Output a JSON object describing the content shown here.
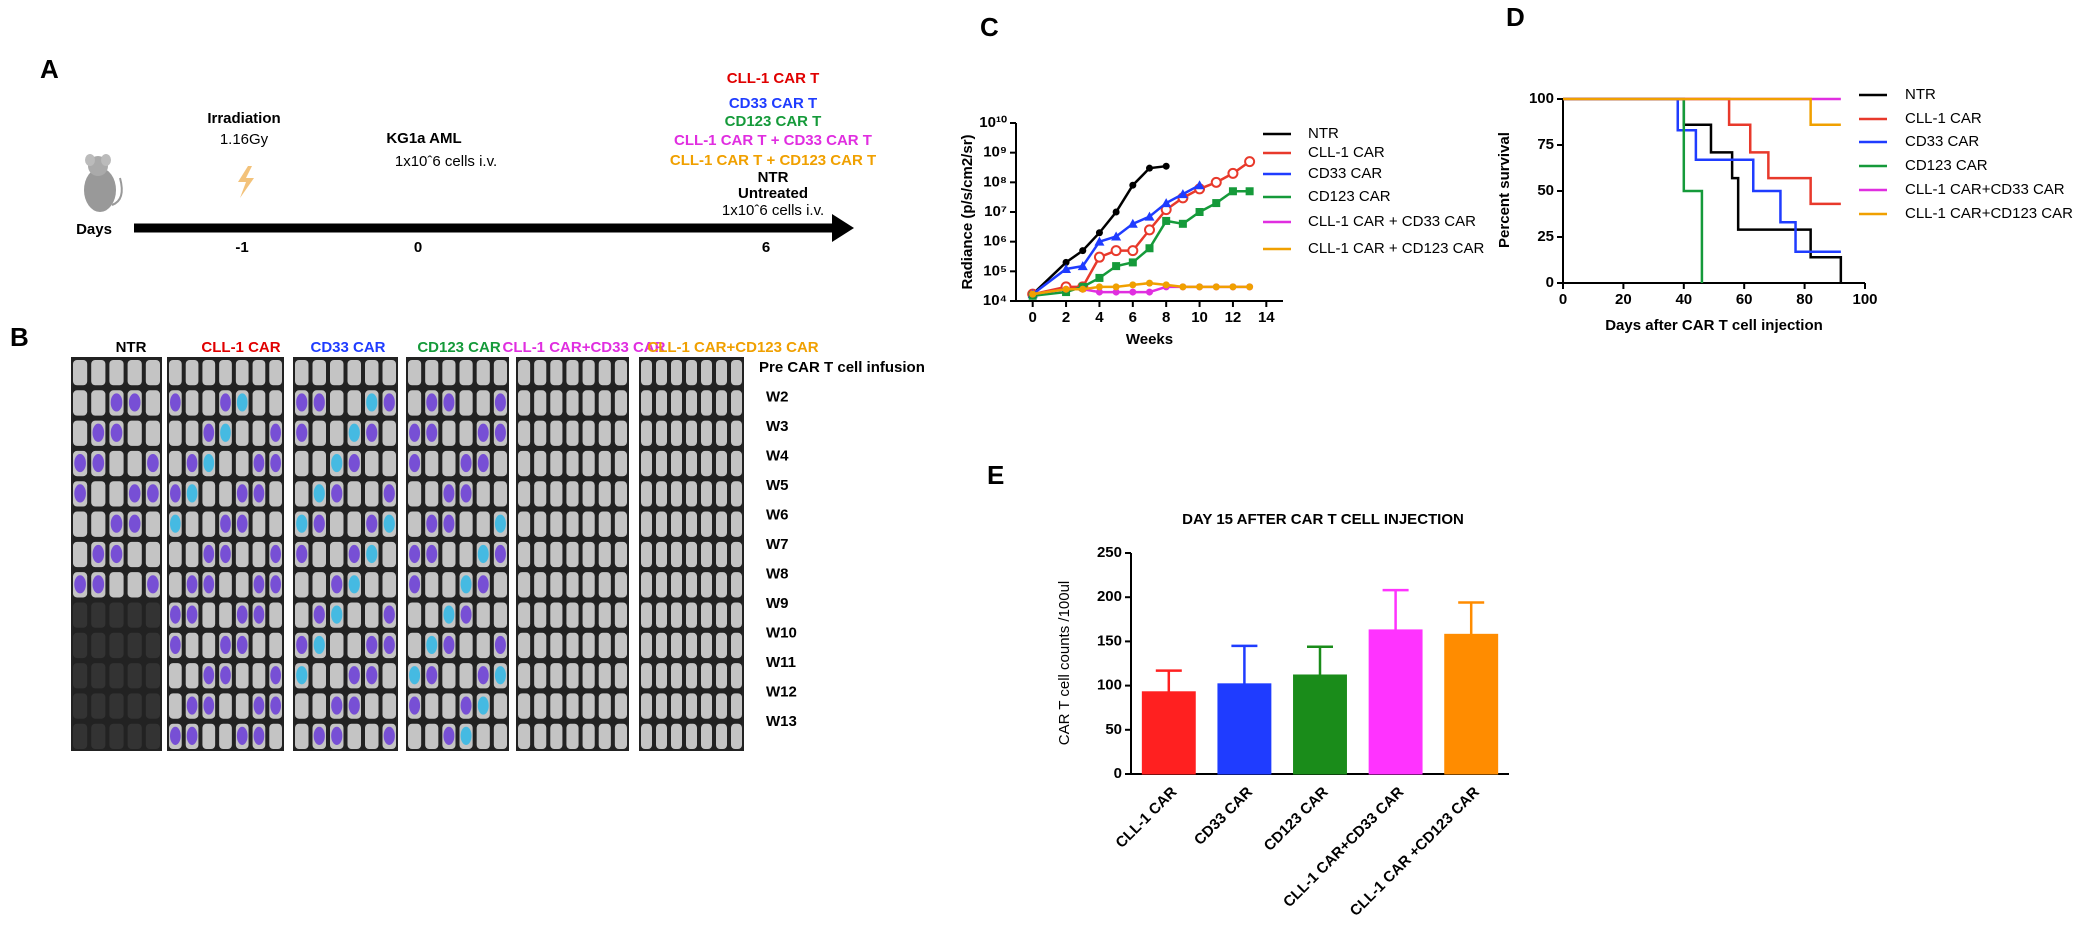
{
  "panel_a": {
    "label": "A",
    "irradiation": {
      "title": "Irradiation",
      "dose": "1.16Gy"
    },
    "injection": {
      "title": "KG1a AML",
      "detail": "1x10ˆ6 cells i.v."
    },
    "axis_label": "Days",
    "days": [
      "-1",
      "0",
      "6"
    ],
    "treatments": [
      {
        "text": "CLL-1 CAR T",
        "color": "#e00000"
      },
      {
        "text": "CD33 CAR  T",
        "color": "#1f3cff"
      },
      {
        "text": "CD123 CAR T",
        "color": "#159a3a"
      },
      {
        "text": "CLL-1 CAR T + CD33 CAR T",
        "color": "#e02ee0"
      },
      {
        "text": "CLL-1 CAR T + CD123 CAR T",
        "color": "#f0a000"
      }
    ],
    "controls": [
      "NTR",
      "Untreated",
      "1x10ˆ6 cells i.v."
    ]
  },
  "panel_b": {
    "label": "B",
    "groups": [
      {
        "name": "NTR",
        "color": "#000000"
      },
      {
        "name": "CLL-1 CAR",
        "color": "#e00000"
      },
      {
        "name": "CD33 CAR",
        "color": "#1f3cff"
      },
      {
        "name": "CD123 CAR",
        "color": "#159a3a"
      },
      {
        "name": "CLL-1 CAR+CD33 CAR",
        "color": "#e02ee0"
      },
      {
        "name": "CLL-1 CAR+CD123 CAR",
        "color": "#f0a000"
      }
    ],
    "rows": [
      "Pre CAR T cell infusion",
      "W2",
      "W3",
      "W4",
      "W5",
      "W6",
      "W7",
      "W8",
      "W9",
      "W10",
      "W11",
      "W12",
      "W13"
    ]
  },
  "chart_data": [
    {
      "type": "line",
      "label": "C",
      "ylabel": "Radiance (p/s/cm2/sr)",
      "xlabel": "Weeks",
      "log_y": true,
      "x": [
        0,
        2,
        3,
        4,
        5,
        6,
        7,
        8,
        9,
        10,
        11,
        12,
        13
      ],
      "xlim": [
        -1,
        15
      ],
      "xticks": [
        0,
        2,
        4,
        6,
        8,
        10,
        12,
        14
      ],
      "ylim": [
        10000,
        10000000000
      ],
      "yticks": [
        {
          "value": 10000,
          "label": "10⁴"
        },
        {
          "value": 100000,
          "label": "10⁵"
        },
        {
          "value": 1000000,
          "label": "10⁶"
        },
        {
          "value": 10000000,
          "label": "10⁷"
        },
        {
          "value": 100000000,
          "label": "10⁸"
        },
        {
          "value": 1000000000,
          "label": "10⁹"
        },
        {
          "value": 10000000000,
          "label": "10¹⁰"
        }
      ],
      "series": [
        {
          "name": "NTR",
          "color": "#000000",
          "values": [
            17000,
            200000,
            500000,
            2000000,
            10000000,
            80000000,
            300000000,
            350000000,
            null,
            null,
            null,
            null,
            null
          ]
        },
        {
          "name": "CLL-1 CAR",
          "color": "#e8392b",
          "values": [
            17000,
            30000,
            30000,
            300000,
            500000,
            500000,
            2500000,
            12000000,
            30000000,
            60000000,
            100000000,
            200000000,
            500000000
          ]
        },
        {
          "name": "CD33 CAR",
          "color": "#1f3cff",
          "values": [
            17000,
            120000,
            150000,
            1000000,
            1500000,
            4000000,
            7000000,
            20000000,
            40000000,
            80000000,
            null,
            null,
            null
          ]
        },
        {
          "name": "CD123 CAR",
          "color": "#159a3a",
          "values": [
            15000,
            20000,
            30000,
            60000,
            150000,
            200000,
            600000,
            5000000,
            4000000,
            10000000,
            20000000,
            50000000,
            50000000
          ]
        },
        {
          "name": "CLL-1 CAR + CD33 CAR",
          "color": "#e02ee0",
          "values": [
            17000,
            25000,
            25000,
            20000,
            20000,
            20000,
            20000,
            30000,
            30000,
            30000,
            30000,
            30000,
            30000
          ]
        },
        {
          "name": "CLL-1 CAR + CD123 CAR",
          "color": "#f0a000",
          "values": [
            17000,
            25000,
            25000,
            30000,
            30000,
            35000,
            40000,
            35000,
            30000,
            30000,
            30000,
            30000,
            30000
          ]
        }
      ]
    },
    {
      "type": "step",
      "label": "D",
      "ylabel": "Percent survival",
      "xlabel": "Days after CAR T cell  injection",
      "xlim": [
        0,
        100
      ],
      "xticks": [
        0,
        20,
        40,
        60,
        80,
        100
      ],
      "ylim": [
        0,
        100
      ],
      "yticks": [
        0,
        25,
        50,
        75,
        100
      ],
      "series": [
        {
          "name": "NTR",
          "color": "#000000",
          "x": [
            0,
            40,
            49,
            56,
            58,
            82,
            92
          ],
          "values": [
            100,
            86,
            71,
            57,
            29,
            14,
            0
          ]
        },
        {
          "name": "CLL-1 CAR",
          "color": "#e8392b",
          "x": [
            0,
            55,
            62,
            68,
            82,
            92
          ],
          "values": [
            100,
            86,
            71,
            57,
            43,
            43
          ]
        },
        {
          "name": "CD33 CAR",
          "color": "#1f3cff",
          "x": [
            0,
            38,
            44,
            63,
            72,
            77,
            92
          ],
          "values": [
            100,
            83,
            67,
            50,
            33,
            17,
            17
          ]
        },
        {
          "name": "CD123 CAR",
          "color": "#159a3a",
          "x": [
            0,
            40,
            46
          ],
          "values": [
            100,
            50,
            0
          ]
        },
        {
          "name": "CLL-1 CAR+CD33 CAR",
          "color": "#e02ee0",
          "x": [
            0,
            92
          ],
          "values": [
            100,
            100
          ]
        },
        {
          "name": "CLL-1 CAR+CD123 CAR",
          "color": "#f0a000",
          "x": [
            0,
            82,
            92
          ],
          "values": [
            100,
            86,
            86
          ]
        }
      ]
    },
    {
      "type": "bar",
      "label": "E",
      "title": "DAY 15 AFTER CAR T CELL INJECTION",
      "ylabel": "CAR T cell counts /100ul",
      "categories": [
        "CLL-1 CAR",
        "CD33 CAR",
        "CD123 CAR",
        "CLL-1 CAR+CD33 CAR",
        "CLL-1 CAR +CD123 CAR"
      ],
      "values": [
        93,
        102,
        112,
        163,
        158
      ],
      "errors": [
        24,
        43,
        32,
        45,
        36
      ],
      "colors": [
        "#ff2020",
        "#1f3cff",
        "#1a8c1a",
        "#ff33ff",
        "#ff8c00"
      ],
      "ylim": [
        0,
        250
      ],
      "yticks": [
        0,
        50,
        100,
        150,
        200,
        250
      ]
    }
  ]
}
